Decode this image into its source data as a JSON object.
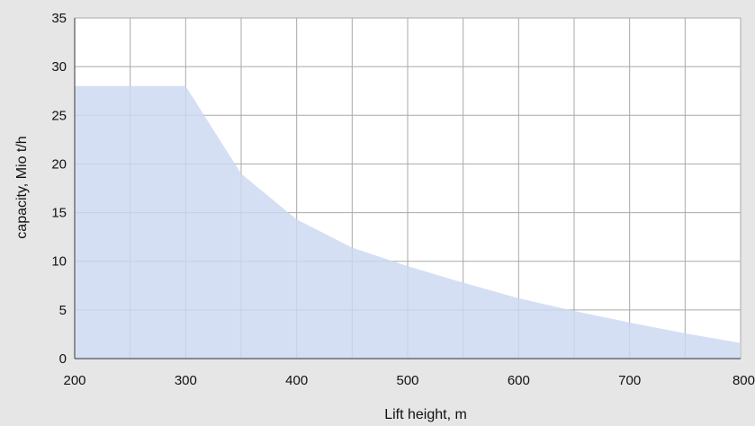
{
  "chart_data": {
    "type": "area",
    "title": "",
    "xlabel": "Lift height, m",
    "ylabel": "capacity, Mio t/h",
    "xlim": [
      200,
      800
    ],
    "ylim": [
      0,
      35
    ],
    "x_ticks": [
      "200",
      "300",
      "400",
      "500",
      "600",
      "700",
      "800"
    ],
    "y_ticks": [
      "0",
      "5",
      "10",
      "15",
      "20",
      "25",
      "30",
      "35"
    ],
    "x_grid_step": 50,
    "y_grid_step": 5,
    "grid": true,
    "series": [
      {
        "x": [
          200,
          300,
          350,
          400,
          450,
          500,
          550,
          600,
          650,
          700,
          750,
          800
        ],
        "y": [
          28,
          28,
          19,
          14.3,
          11.4,
          9.5,
          7.8,
          6.2,
          4.9,
          3.7,
          2.6,
          1.6
        ]
      }
    ],
    "colors": {
      "background": "#e6e6e6",
      "plot_background": "#ffffff",
      "fill": "#ccd8f1",
      "grid": "#a9a9a9",
      "axis": "#555555",
      "text": "#111111"
    }
  }
}
